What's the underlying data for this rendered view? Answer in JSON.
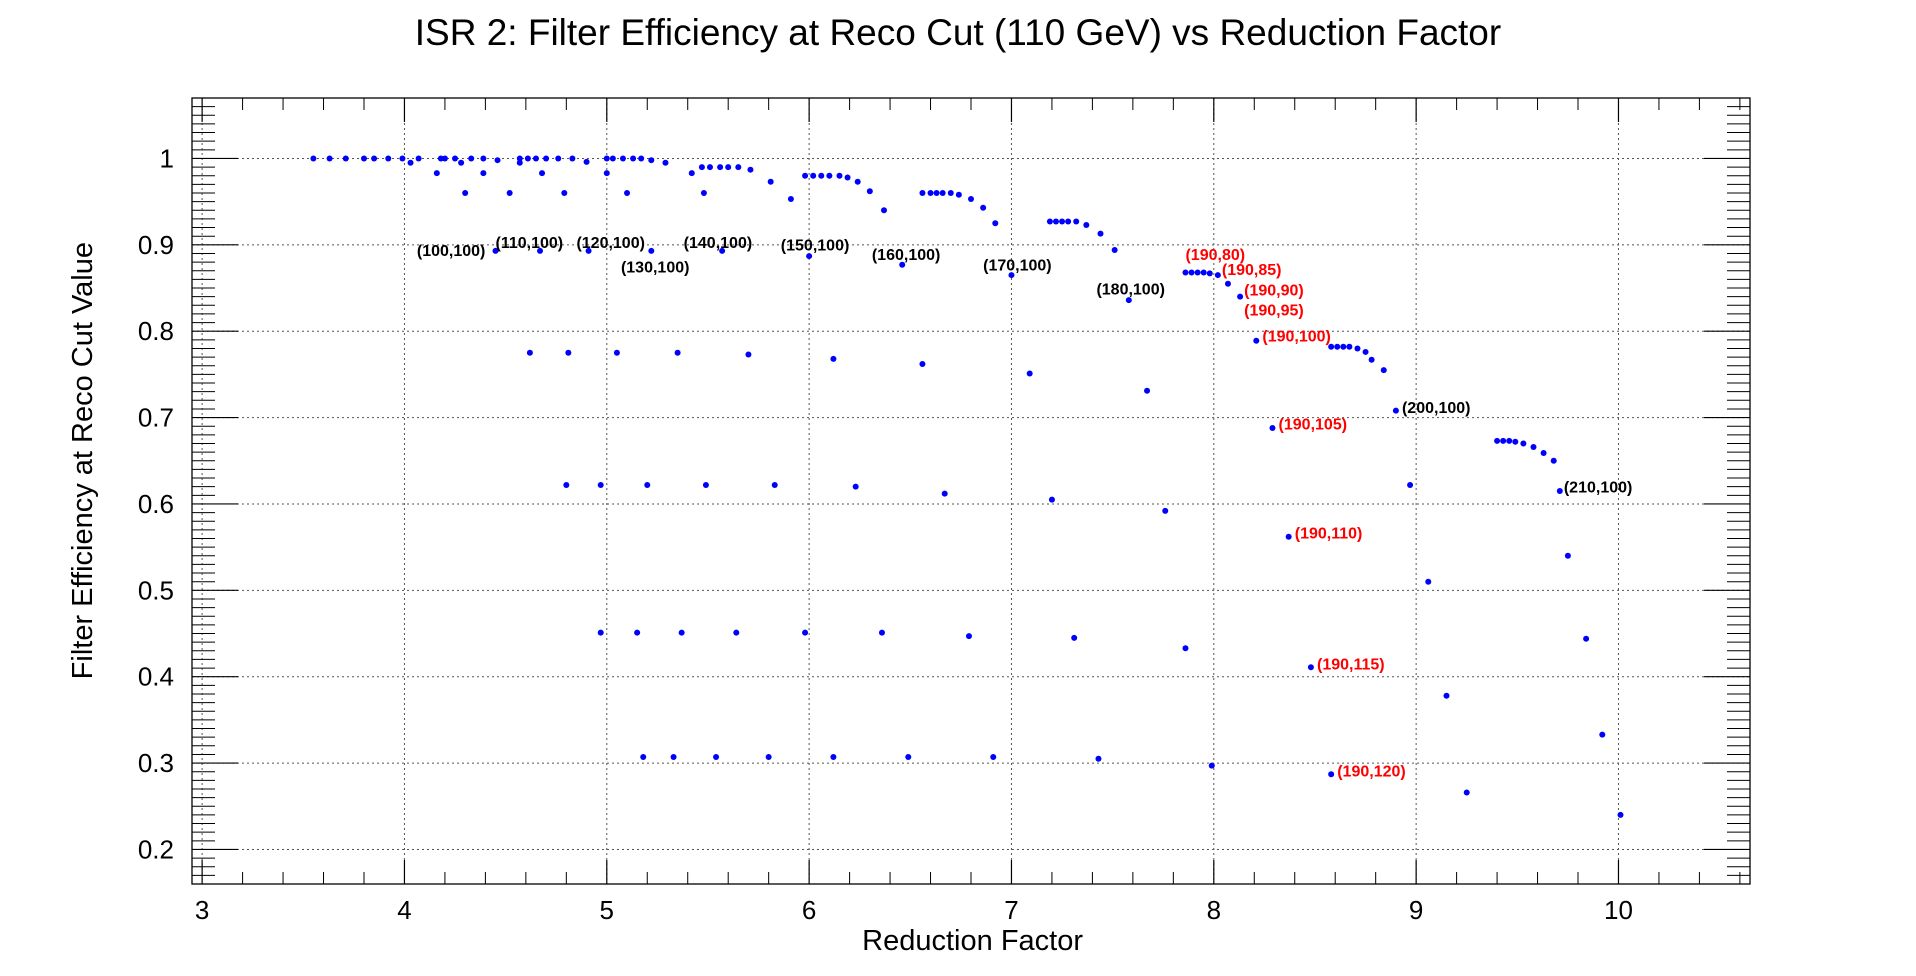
{
  "chart_data": {
    "type": "scatter",
    "title": "ISR 2: Filter Efficiency at Reco Cut (110 GeV) vs Reduction Factor",
    "xlabel": "Reduction Factor",
    "ylabel": "Filter Efficiency at Reco Cut Value",
    "xlim": [
      2.95,
      10.65
    ],
    "ylim": [
      0.16,
      1.07
    ],
    "x_ticks": [
      "3",
      "4",
      "5",
      "6",
      "7",
      "8",
      "9",
      "10"
    ],
    "y_ticks": [
      "0.2",
      "0.3",
      "0.4",
      "0.5",
      "0.6",
      "0.7",
      "0.8",
      "0.9",
      "1"
    ],
    "grid": true,
    "marker_color": "#0000ff",
    "points": [
      [
        3.55,
        1.0
      ],
      [
        3.63,
        1.0
      ],
      [
        3.71,
        1.0
      ],
      [
        3.8,
        1.0
      ],
      [
        3.85,
        1.0
      ],
      [
        3.92,
        1.0
      ],
      [
        3.99,
        1.0
      ],
      [
        4.03,
        0.995
      ],
      [
        4.07,
        1.0
      ],
      [
        4.16,
        0.983
      ],
      [
        4.18,
        1.0
      ],
      [
        4.2,
        1.0
      ],
      [
        4.25,
        1.0
      ],
      [
        4.28,
        0.995
      ],
      [
        4.3,
        0.96
      ],
      [
        4.33,
        1.0
      ],
      [
        4.39,
        0.983
      ],
      [
        4.39,
        1.0
      ],
      [
        4.45,
        0.893
      ],
      [
        4.46,
        0.998
      ],
      [
        4.52,
        0.96
      ],
      [
        4.57,
        0.995
      ],
      [
        4.57,
        1.0
      ],
      [
        4.61,
        1.0
      ],
      [
        4.62,
        0.775
      ],
      [
        4.65,
        1.0
      ],
      [
        4.67,
        0.893
      ],
      [
        4.68,
        0.983
      ],
      [
        4.7,
        1.0
      ],
      [
        4.76,
        1.0
      ],
      [
        4.79,
        0.96
      ],
      [
        4.8,
        0.622
      ],
      [
        4.81,
        0.775
      ],
      [
        4.83,
        1.0
      ],
      [
        4.9,
        0.996
      ],
      [
        4.91,
        0.893
      ],
      [
        4.97,
        0.622
      ],
      [
        4.97,
        0.451
      ],
      [
        5.0,
        1.0
      ],
      [
        5.0,
        0.983
      ],
      [
        5.03,
        1.0
      ],
      [
        5.05,
        0.775
      ],
      [
        5.08,
        1.0
      ],
      [
        5.1,
        0.96
      ],
      [
        5.13,
        1.0
      ],
      [
        5.15,
        0.451
      ],
      [
        5.17,
        1.0
      ],
      [
        5.18,
        0.307
      ],
      [
        5.2,
        0.622
      ],
      [
        5.22,
        0.893
      ],
      [
        5.22,
        0.998
      ],
      [
        5.29,
        0.995
      ],
      [
        5.33,
        0.307
      ],
      [
        5.35,
        0.775
      ],
      [
        5.37,
        0.451
      ],
      [
        5.42,
        0.983
      ],
      [
        5.47,
        0.99
      ],
      [
        5.48,
        0.96
      ],
      [
        5.49,
        0.622
      ],
      [
        5.51,
        0.99
      ],
      [
        5.54,
        0.307
      ],
      [
        5.56,
        0.99
      ],
      [
        5.57,
        0.893
      ],
      [
        5.6,
        0.99
      ],
      [
        5.64,
        0.451
      ],
      [
        5.65,
        0.99
      ],
      [
        5.7,
        0.773
      ],
      [
        5.71,
        0.987
      ],
      [
        5.8,
        0.307
      ],
      [
        5.81,
        0.973
      ],
      [
        5.83,
        0.622
      ],
      [
        5.91,
        0.953
      ],
      [
        5.98,
        0.451
      ],
      [
        5.98,
        0.98
      ],
      [
        6.0,
        0.887
      ],
      [
        6.02,
        0.98
      ],
      [
        6.06,
        0.98
      ],
      [
        6.1,
        0.98
      ],
      [
        6.12,
        0.307
      ],
      [
        6.12,
        0.768
      ],
      [
        6.15,
        0.98
      ],
      [
        6.19,
        0.978
      ],
      [
        6.23,
        0.62
      ],
      [
        6.24,
        0.973
      ],
      [
        6.3,
        0.962
      ],
      [
        6.36,
        0.451
      ],
      [
        6.37,
        0.94
      ],
      [
        6.46,
        0.877
      ],
      [
        6.49,
        0.307
      ],
      [
        6.56,
        0.96
      ],
      [
        6.56,
        0.762
      ],
      [
        6.6,
        0.96
      ],
      [
        6.63,
        0.96
      ],
      [
        6.66,
        0.96
      ],
      [
        6.67,
        0.612
      ],
      [
        6.7,
        0.96
      ],
      [
        6.74,
        0.958
      ],
      [
        6.79,
        0.447
      ],
      [
        6.8,
        0.953
      ],
      [
        6.86,
        0.943
      ],
      [
        6.91,
        0.307
      ],
      [
        6.92,
        0.925
      ],
      [
        7.0,
        0.865
      ],
      [
        7.09,
        0.751
      ],
      [
        7.19,
        0.927
      ],
      [
        7.2,
        0.605
      ],
      [
        7.22,
        0.927
      ],
      [
        7.25,
        0.927
      ],
      [
        7.28,
        0.927
      ],
      [
        7.31,
        0.445
      ],
      [
        7.32,
        0.927
      ],
      [
        7.37,
        0.923
      ],
      [
        7.43,
        0.305
      ],
      [
        7.44,
        0.913
      ],
      [
        7.51,
        0.894
      ],
      [
        7.58,
        0.836
      ],
      [
        7.67,
        0.731
      ],
      [
        7.76,
        0.592
      ],
      [
        7.86,
        0.868
      ],
      [
        7.86,
        0.433
      ],
      [
        7.89,
        0.868
      ],
      [
        7.92,
        0.868
      ],
      [
        7.95,
        0.868
      ],
      [
        7.98,
        0.867
      ],
      [
        7.99,
        0.297
      ],
      [
        8.02,
        0.865
      ],
      [
        8.07,
        0.855
      ],
      [
        8.13,
        0.84
      ],
      [
        8.21,
        0.789
      ],
      [
        8.29,
        0.688
      ],
      [
        8.37,
        0.562
      ],
      [
        8.48,
        0.411
      ],
      [
        8.58,
        0.782
      ],
      [
        8.58,
        0.287
      ],
      [
        8.61,
        0.782
      ],
      [
        8.64,
        0.782
      ],
      [
        8.67,
        0.782
      ],
      [
        8.71,
        0.78
      ],
      [
        8.75,
        0.776
      ],
      [
        8.78,
        0.767
      ],
      [
        8.84,
        0.755
      ],
      [
        8.9,
        0.708
      ],
      [
        8.97,
        0.622
      ],
      [
        9.06,
        0.51
      ],
      [
        9.15,
        0.378
      ],
      [
        9.25,
        0.266
      ],
      [
        9.4,
        0.673
      ],
      [
        9.43,
        0.673
      ],
      [
        9.46,
        0.673
      ],
      [
        9.49,
        0.672
      ],
      [
        9.53,
        0.67
      ],
      [
        9.58,
        0.666
      ],
      [
        9.63,
        0.659
      ],
      [
        9.68,
        0.65
      ],
      [
        9.71,
        0.615
      ],
      [
        9.75,
        0.54
      ],
      [
        9.84,
        0.444
      ],
      [
        9.92,
        0.333
      ],
      [
        10.01,
        0.24
      ]
    ],
    "annotations": [
      {
        "text": "(100,100)",
        "x": 4.4,
        "y": 0.893,
        "anchor": "end",
        "color": "#000000"
      },
      {
        "text": "(110,100)",
        "x": 4.45,
        "y": 0.902,
        "anchor": "start",
        "color": "#000000"
      },
      {
        "text": "(120,100)",
        "x": 4.85,
        "y": 0.902,
        "anchor": "start",
        "color": "#000000"
      },
      {
        "text": "(130,100)",
        "x": 5.07,
        "y": 0.874,
        "anchor": "start",
        "color": "#000000"
      },
      {
        "text": "(140,100)",
        "x": 5.38,
        "y": 0.902,
        "anchor": "start",
        "color": "#000000"
      },
      {
        "text": "(150,100)",
        "x": 5.86,
        "y": 0.899,
        "anchor": "start",
        "color": "#000000"
      },
      {
        "text": "(160,100)",
        "x": 6.31,
        "y": 0.888,
        "anchor": "start",
        "color": "#000000"
      },
      {
        "text": "(170,100)",
        "x": 6.86,
        "y": 0.876,
        "anchor": "start",
        "color": "#000000"
      },
      {
        "text": "(180,100)",
        "x": 7.42,
        "y": 0.848,
        "anchor": "start",
        "color": "#000000"
      },
      {
        "text": "(190,80)",
        "x": 7.86,
        "y": 0.888,
        "anchor": "start",
        "color": "#ff0000"
      },
      {
        "text": "(190,85)",
        "x": 8.04,
        "y": 0.871,
        "anchor": "start",
        "color": "#ff0000"
      },
      {
        "text": "(190,90)",
        "x": 8.15,
        "y": 0.847,
        "anchor": "start",
        "color": "#ff0000"
      },
      {
        "text": "(190,95)",
        "x": 8.15,
        "y": 0.824,
        "anchor": "start",
        "color": "#ff0000"
      },
      {
        "text": "(190,100)",
        "x": 8.24,
        "y": 0.794,
        "anchor": "start",
        "color": "#ff0000"
      },
      {
        "text": "(190,105)",
        "x": 8.32,
        "y": 0.692,
        "anchor": "start",
        "color": "#ff0000"
      },
      {
        "text": "(190,110)",
        "x": 8.4,
        "y": 0.566,
        "anchor": "start",
        "color": "#ff0000"
      },
      {
        "text": "(190,115)",
        "x": 8.51,
        "y": 0.414,
        "anchor": "start",
        "color": "#ff0000"
      },
      {
        "text": "(190,120)",
        "x": 8.61,
        "y": 0.29,
        "anchor": "start",
        "color": "#ff0000"
      },
      {
        "text": "(200,100)",
        "x": 8.93,
        "y": 0.711,
        "anchor": "start",
        "color": "#000000"
      },
      {
        "text": "(210,100)",
        "x": 9.73,
        "y": 0.619,
        "anchor": "start",
        "color": "#000000"
      }
    ]
  }
}
